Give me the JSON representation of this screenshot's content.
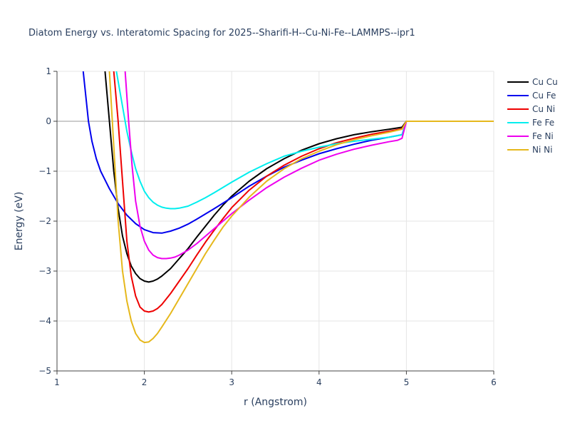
{
  "chart_data": {
    "type": "line",
    "title": "Diatom Energy vs. Interatomic Spacing for 2025--Sharifi-H--Cu-Ni-Fe--LAMMPS--ipr1",
    "xlabel": "r (Angstrom)",
    "ylabel": "Energy (eV)",
    "xlim": [
      1,
      6
    ],
    "ylim": [
      -5,
      1
    ],
    "xticks": [
      1,
      2,
      3,
      4,
      5,
      6
    ],
    "yticks": [
      -5,
      -4,
      -3,
      -2,
      -1,
      0,
      1
    ],
    "xtick_labels": [
      "1",
      "2",
      "3",
      "4",
      "5",
      "6"
    ],
    "ytick_labels": [
      "−5",
      "−4",
      "−3",
      "−2",
      "−1",
      "0",
      "1"
    ],
    "grid": true,
    "legend_position": "top-right",
    "series": [
      {
        "name": "Cu Cu",
        "color": "#000000",
        "x": [
          1.55,
          1.6,
          1.65,
          1.7,
          1.75,
          1.8,
          1.85,
          1.9,
          1.95,
          2.0,
          2.05,
          2.1,
          2.15,
          2.2,
          2.3,
          2.4,
          2.5,
          2.6,
          2.7,
          2.8,
          2.9,
          3.0,
          3.2,
          3.4,
          3.6,
          3.8,
          4.0,
          4.2,
          4.4,
          4.6,
          4.8,
          4.95,
          5.0,
          5.5,
          6.0
        ],
        "y": [
          1.0,
          0.0,
          -1.0,
          -1.75,
          -2.3,
          -2.65,
          -2.9,
          -3.05,
          -3.15,
          -3.2,
          -3.22,
          -3.2,
          -3.16,
          -3.1,
          -2.95,
          -2.75,
          -2.55,
          -2.32,
          -2.1,
          -1.88,
          -1.68,
          -1.5,
          -1.2,
          -0.95,
          -0.75,
          -0.58,
          -0.45,
          -0.35,
          -0.27,
          -0.21,
          -0.16,
          -0.12,
          0.0,
          0.0,
          0.0
        ]
      },
      {
        "name": "Cu Fe",
        "color": "#0000ee",
        "x": [
          1.3,
          1.33,
          1.36,
          1.4,
          1.45,
          1.5,
          1.6,
          1.7,
          1.8,
          1.9,
          2.0,
          2.1,
          2.2,
          2.3,
          2.4,
          2.5,
          2.6,
          2.8,
          3.0,
          3.2,
          3.4,
          3.6,
          3.8,
          4.0,
          4.2,
          4.4,
          4.6,
          4.8,
          4.95,
          5.0,
          5.5,
          6.0
        ],
        "y": [
          1.0,
          0.5,
          0.0,
          -0.4,
          -0.75,
          -1.0,
          -1.35,
          -1.65,
          -1.88,
          -2.05,
          -2.17,
          -2.23,
          -2.24,
          -2.2,
          -2.14,
          -2.06,
          -1.96,
          -1.75,
          -1.53,
          -1.3,
          -1.1,
          -0.92,
          -0.78,
          -0.65,
          -0.55,
          -0.46,
          -0.38,
          -0.32,
          -0.27,
          0.0,
          0.0,
          0.0
        ]
      },
      {
        "name": "Cu Ni",
        "color": "#ee0000",
        "x": [
          1.65,
          1.7,
          1.75,
          1.8,
          1.85,
          1.9,
          1.95,
          2.0,
          2.05,
          2.1,
          2.15,
          2.2,
          2.3,
          2.4,
          2.5,
          2.6,
          2.7,
          2.8,
          2.9,
          3.0,
          3.2,
          3.4,
          3.6,
          3.8,
          4.0,
          4.2,
          4.4,
          4.6,
          4.8,
          4.95,
          5.0,
          5.5,
          6.0
        ],
        "y": [
          1.0,
          0.0,
          -1.2,
          -2.4,
          -3.1,
          -3.5,
          -3.72,
          -3.8,
          -3.82,
          -3.8,
          -3.75,
          -3.67,
          -3.45,
          -3.2,
          -2.95,
          -2.68,
          -2.42,
          -2.18,
          -1.95,
          -1.73,
          -1.38,
          -1.1,
          -0.88,
          -0.7,
          -0.55,
          -0.43,
          -0.34,
          -0.26,
          -0.2,
          -0.15,
          0.0,
          0.0,
          0.0
        ]
      },
      {
        "name": "Fe Fe",
        "color": "#00eeee",
        "x": [
          1.68,
          1.72,
          1.76,
          1.8,
          1.85,
          1.9,
          1.95,
          2.0,
          2.05,
          2.1,
          2.15,
          2.2,
          2.25,
          2.3,
          2.35,
          2.4,
          2.5,
          2.6,
          2.7,
          2.8,
          3.0,
          3.2,
          3.4,
          3.6,
          3.8,
          4.0,
          4.2,
          4.4,
          4.6,
          4.8,
          4.95,
          5.0,
          5.5,
          6.0
        ],
        "y": [
          1.0,
          0.6,
          0.2,
          -0.2,
          -0.6,
          -0.95,
          -1.2,
          -1.4,
          -1.53,
          -1.62,
          -1.68,
          -1.72,
          -1.74,
          -1.75,
          -1.75,
          -1.74,
          -1.7,
          -1.62,
          -1.53,
          -1.43,
          -1.22,
          -1.02,
          -0.85,
          -0.7,
          -0.6,
          -0.52,
          -0.45,
          -0.4,
          -0.36,
          -0.32,
          -0.27,
          0.0,
          0.0,
          0.0
        ]
      },
      {
        "name": "Fe Ni",
        "color": "#ee00ee",
        "x": [
          1.78,
          1.82,
          1.86,
          1.9,
          1.95,
          2.0,
          2.05,
          2.1,
          2.15,
          2.2,
          2.25,
          2.3,
          2.35,
          2.4,
          2.5,
          2.6,
          2.7,
          2.8,
          2.9,
          3.0,
          3.2,
          3.4,
          3.6,
          3.8,
          4.0,
          4.2,
          4.4,
          4.6,
          4.8,
          4.9,
          4.95,
          5.0,
          5.5,
          6.0
        ],
        "y": [
          1.0,
          0.0,
          -0.9,
          -1.6,
          -2.1,
          -2.4,
          -2.58,
          -2.68,
          -2.73,
          -2.75,
          -2.75,
          -2.74,
          -2.72,
          -2.68,
          -2.58,
          -2.45,
          -2.3,
          -2.15,
          -2.0,
          -1.85,
          -1.58,
          -1.33,
          -1.12,
          -0.94,
          -0.78,
          -0.66,
          -0.56,
          -0.48,
          -0.41,
          -0.38,
          -0.34,
          0.0,
          0.0,
          0.0
        ]
      },
      {
        "name": "Ni Ni",
        "color": "#e6b81c",
        "x": [
          1.6,
          1.65,
          1.7,
          1.75,
          1.8,
          1.85,
          1.9,
          1.95,
          2.0,
          2.05,
          2.1,
          2.15,
          2.2,
          2.3,
          2.4,
          2.5,
          2.6,
          2.7,
          2.8,
          2.9,
          3.0,
          3.2,
          3.4,
          3.6,
          3.8,
          4.0,
          4.2,
          4.4,
          4.6,
          4.8,
          4.95,
          5.0,
          5.5,
          6.0
        ],
        "y": [
          1.0,
          -0.5,
          -2.0,
          -3.0,
          -3.6,
          -4.0,
          -4.25,
          -4.38,
          -4.43,
          -4.42,
          -4.35,
          -4.25,
          -4.12,
          -3.85,
          -3.55,
          -3.25,
          -2.95,
          -2.65,
          -2.38,
          -2.12,
          -1.9,
          -1.52,
          -1.2,
          -0.95,
          -0.75,
          -0.6,
          -0.47,
          -0.37,
          -0.29,
          -0.22,
          -0.16,
          0.0,
          0.0,
          0.0
        ]
      }
    ]
  }
}
